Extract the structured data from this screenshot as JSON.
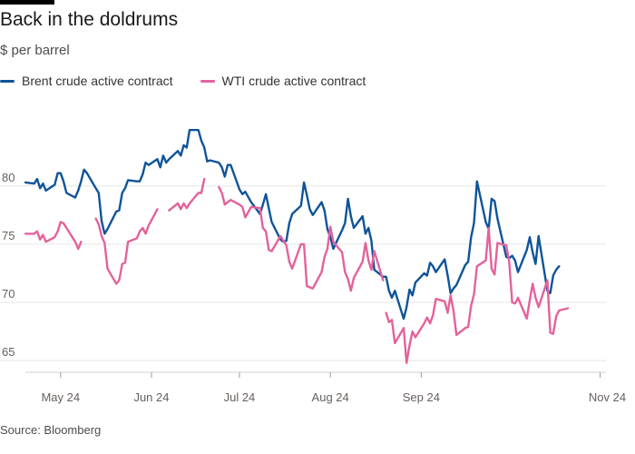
{
  "title": "Back in the doldrums",
  "subtitle": "$ per barrel",
  "source": "Source: Bloomberg",
  "colors": {
    "brent": "#0f5499",
    "wti": "#e3629b",
    "grid": "#e5e5e5",
    "axis": "#66605c"
  },
  "legend": [
    {
      "label": "Brent crude active contract",
      "color": "#0f5499"
    },
    {
      "label": "WTI crude active contract",
      "color": "#e3629b"
    }
  ],
  "chart_data": {
    "type": "line",
    "title": "Back in the doldrums",
    "ylabel": "$ per barrel",
    "ylim": [
      64,
      87
    ],
    "yticks": [
      65,
      70,
      75,
      80
    ],
    "xlim": [
      "2024-04-19",
      "2024-11-03"
    ],
    "xticks": [
      {
        "label": "May 24",
        "date": "2024-05-01"
      },
      {
        "label": "Jun 24",
        "date": "2024-06-01"
      },
      {
        "label": "Jul 24",
        "date": "2024-07-01"
      },
      {
        "label": "Aug 24",
        "date": "2024-08-01"
      },
      {
        "label": "Sep 24",
        "date": "2024-09-01"
      },
      {
        "label": "Nov 24",
        "date": "2024-11-01"
      }
    ],
    "grid": true,
    "legend_position": "top-left",
    "series": [
      {
        "name": "Brent crude active contract",
        "points": [
          [
            "2024-04-19",
            80.3
          ],
          [
            "2024-04-22",
            80.2
          ],
          [
            "2024-04-23",
            80.6
          ],
          [
            "2024-04-24",
            79.8
          ],
          [
            "2024-04-25",
            80.2
          ],
          [
            "2024-04-26",
            79.6
          ],
          [
            "2024-04-29",
            80.1
          ],
          [
            "2024-04-30",
            81.1
          ],
          [
            "2024-05-01",
            81.1
          ],
          [
            "2024-05-02",
            80.4
          ],
          [
            "2024-05-03",
            79.4
          ],
          [
            "2024-05-06",
            79.0
          ],
          [
            "2024-05-07",
            79.6
          ],
          [
            "2024-05-08",
            80.4
          ],
          [
            "2024-05-09",
            81.4
          ],
          [
            "2024-05-10",
            81.1
          ],
          [
            "2024-05-13",
            79.8
          ],
          [
            "2024-05-14",
            79.4
          ],
          [
            "2024-05-15",
            77.0
          ],
          [
            "2024-05-16",
            75.9
          ],
          [
            "2024-05-17",
            76.3
          ],
          [
            "2024-05-20",
            77.8
          ],
          [
            "2024-05-21",
            77.9
          ],
          [
            "2024-05-22",
            79.4
          ],
          [
            "2024-05-23",
            79.8
          ],
          [
            "2024-05-24",
            80.5
          ],
          [
            "2024-05-27",
            80.4
          ],
          [
            "2024-05-28",
            80.4
          ],
          [
            "2024-05-29",
            81.0
          ],
          [
            "2024-05-30",
            82.0
          ],
          [
            "2024-05-31",
            81.8
          ],
          [
            "2024-06-03",
            82.3
          ],
          [
            "2024-06-04",
            81.6
          ],
          [
            "2024-06-05",
            82.6
          ],
          [
            "2024-06-06",
            82.0
          ],
          [
            "2024-06-07",
            82.3
          ],
          [
            "2024-06-10",
            83.0
          ],
          [
            "2024-06-11",
            82.6
          ],
          [
            "2024-06-12",
            83.5
          ],
          [
            "2024-06-13",
            83.3
          ],
          [
            "2024-06-14",
            84.8
          ],
          [
            "2024-06-17",
            84.8
          ],
          [
            "2024-06-18",
            83.9
          ],
          [
            "2024-06-19",
            83.3
          ],
          [
            "2024-06-20",
            82.1
          ],
          [
            "2024-06-21",
            82.2
          ],
          [
            "2024-06-24",
            82.0
          ],
          [
            "2024-06-25",
            81.6
          ],
          [
            "2024-06-26",
            80.8
          ],
          [
            "2024-06-27",
            81.8
          ],
          [
            "2024-06-28",
            81.8
          ],
          [
            "2024-07-01",
            79.7
          ],
          [
            "2024-07-02",
            79.3
          ],
          [
            "2024-07-03",
            79.5
          ],
          [
            "2024-07-05",
            78.6
          ],
          [
            "2024-07-08",
            77.6
          ],
          [
            "2024-07-09",
            78.4
          ],
          [
            "2024-07-10",
            79.3
          ],
          [
            "2024-07-11",
            78.1
          ],
          [
            "2024-07-12",
            76.9
          ],
          [
            "2024-07-15",
            75.4
          ],
          [
            "2024-07-16",
            75.2
          ],
          [
            "2024-07-17",
            75.3
          ],
          [
            "2024-07-18",
            76.8
          ],
          [
            "2024-07-19",
            77.6
          ],
          [
            "2024-07-22",
            78.3
          ],
          [
            "2024-07-23",
            80.3
          ],
          [
            "2024-07-24",
            79.2
          ],
          [
            "2024-07-25",
            78.0
          ],
          [
            "2024-07-26",
            77.5
          ],
          [
            "2024-07-29",
            78.6
          ],
          [
            "2024-07-30",
            77.9
          ],
          [
            "2024-07-31",
            76.3
          ],
          [
            "2024-08-01",
            75.6
          ],
          [
            "2024-08-02",
            74.6
          ],
          [
            "2024-08-05",
            76.2
          ],
          [
            "2024-08-06",
            76.8
          ],
          [
            "2024-08-07",
            78.9
          ],
          [
            "2024-08-08",
            77.4
          ],
          [
            "2024-08-09",
            76.4
          ],
          [
            "2024-08-12",
            77.4
          ],
          [
            "2024-08-13",
            75.9
          ],
          [
            "2024-08-14",
            76.4
          ],
          [
            "2024-08-15",
            75.3
          ],
          [
            "2024-08-16",
            72.8
          ],
          [
            "2024-08-19",
            72.2
          ],
          [
            "2024-08-20",
            72.2
          ],
          [
            "2024-08-21",
            71.0
          ],
          [
            "2024-08-22",
            70.4
          ],
          [
            "2024-08-23",
            71.0
          ],
          [
            "2024-08-26",
            68.6
          ],
          [
            "2024-08-27",
            69.6
          ],
          [
            "2024-08-28",
            71.1
          ],
          [
            "2024-08-29",
            70.6
          ],
          [
            "2024-08-30",
            71.7
          ],
          [
            "2024-09-02",
            72.5
          ],
          [
            "2024-09-03",
            72.3
          ],
          [
            "2024-09-04",
            73.4
          ],
          [
            "2024-09-05",
            73.1
          ],
          [
            "2024-09-06",
            72.6
          ],
          [
            "2024-09-09",
            73.7
          ],
          [
            "2024-09-10",
            72.3
          ],
          [
            "2024-09-11",
            70.8
          ],
          [
            "2024-09-12",
            71.2
          ],
          [
            "2024-09-13",
            71.5
          ],
          [
            "2024-09-16",
            73.2
          ],
          [
            "2024-09-17",
            73.5
          ],
          [
            "2024-09-18",
            75.6
          ],
          [
            "2024-09-19",
            76.8
          ],
          [
            "2024-09-20",
            80.4
          ],
          [
            "2024-09-23",
            76.9
          ],
          [
            "2024-09-24",
            76.3
          ],
          [
            "2024-09-25",
            78.9
          ],
          [
            "2024-09-26",
            78.7
          ],
          [
            "2024-09-27",
            77.2
          ],
          [
            "2024-09-30",
            73.9
          ],
          [
            "2024-10-01",
            73.8
          ],
          [
            "2024-10-02",
            74.0
          ],
          [
            "2024-10-03",
            73.6
          ],
          [
            "2024-10-04",
            72.6
          ],
          [
            "2024-10-07",
            74.5
          ],
          [
            "2024-10-08",
            75.6
          ],
          [
            "2024-10-09",
            74.3
          ],
          [
            "2024-10-10",
            73.3
          ],
          [
            "2024-10-11",
            75.7
          ],
          [
            "2024-10-14",
            71.0
          ],
          [
            "2024-10-15",
            70.8
          ],
          [
            "2024-10-16",
            72.3
          ],
          [
            "2024-10-17",
            72.8
          ],
          [
            "2024-10-18",
            73.1
          ]
        ]
      },
      {
        "name": "WTI crude active contract",
        "points": [
          [
            "2024-04-19",
            75.9
          ],
          [
            "2024-04-22",
            75.9
          ],
          [
            "2024-04-23",
            76.1
          ],
          [
            "2024-04-24",
            75.4
          ],
          [
            "2024-04-25",
            75.8
          ],
          [
            "2024-04-26",
            75.2
          ],
          [
            "2024-04-29",
            75.6
          ],
          [
            "2024-04-30",
            76.1
          ],
          [
            "2024-05-01",
            76.9
          ],
          [
            "2024-05-02",
            76.8
          ],
          [
            "2024-05-03",
            76.4
          ],
          [
            "2024-05-06",
            75.2
          ],
          [
            "2024-05-07",
            74.6
          ],
          [
            "2024-05-08",
            75.2
          ],
          null,
          [
            "2024-05-13",
            77.2
          ],
          [
            "2024-05-14",
            76.7
          ],
          [
            "2024-05-15",
            75.7
          ],
          [
            "2024-05-16",
            75.1
          ],
          [
            "2024-05-17",
            72.9
          ],
          [
            "2024-05-20",
            71.6
          ],
          [
            "2024-05-21",
            71.9
          ],
          [
            "2024-05-22",
            73.3
          ],
          [
            "2024-05-23",
            73.4
          ],
          [
            "2024-05-24",
            75.2
          ],
          [
            "2024-05-27",
            75.5
          ],
          [
            "2024-05-28",
            76.1
          ],
          [
            "2024-05-29",
            76.4
          ],
          [
            "2024-05-30",
            75.9
          ],
          [
            "2024-05-31",
            76.6
          ],
          [
            "2024-06-03",
            78.0
          ],
          null,
          [
            "2024-06-07",
            77.9
          ],
          [
            "2024-06-10",
            78.5
          ],
          [
            "2024-06-11",
            78.0
          ],
          [
            "2024-06-12",
            78.5
          ],
          [
            "2024-06-13",
            78.1
          ],
          [
            "2024-06-14",
            78.5
          ],
          [
            "2024-06-17",
            79.4
          ],
          [
            "2024-06-18",
            79.4
          ],
          [
            "2024-06-19",
            80.6
          ],
          null,
          [
            "2024-06-24",
            79.9
          ],
          [
            "2024-06-25",
            79.4
          ],
          [
            "2024-06-26",
            78.4
          ],
          [
            "2024-06-27",
            78.6
          ],
          [
            "2024-06-28",
            78.8
          ],
          [
            "2024-07-01",
            78.4
          ],
          [
            "2024-07-02",
            78.2
          ],
          [
            "2024-07-03",
            77.3
          ],
          [
            "2024-07-05",
            78.2
          ],
          [
            "2024-07-08",
            78.1
          ],
          [
            "2024-07-09",
            76.4
          ],
          [
            "2024-07-10",
            76.1
          ],
          [
            "2024-07-11",
            74.5
          ],
          [
            "2024-07-12",
            74.4
          ],
          [
            "2024-07-15",
            75.7
          ],
          [
            "2024-07-16",
            75.3
          ],
          [
            "2024-07-17",
            74.9
          ],
          [
            "2024-07-18",
            73.5
          ],
          [
            "2024-07-19",
            72.9
          ],
          [
            "2024-07-22",
            75.0
          ],
          [
            "2024-07-23",
            75.0
          ],
          [
            "2024-07-24",
            71.4
          ],
          [
            "2024-07-25",
            71.3
          ],
          [
            "2024-07-26",
            71.2
          ],
          [
            "2024-07-29",
            72.6
          ],
          [
            "2024-07-30",
            73.9
          ],
          [
            "2024-07-31",
            74.6
          ],
          [
            "2024-08-01",
            76.5
          ],
          [
            "2024-08-02",
            75.2
          ],
          [
            "2024-08-05",
            74.3
          ],
          [
            "2024-08-06",
            72.6
          ],
          [
            "2024-08-07",
            72.0
          ],
          [
            "2024-08-08",
            71.0
          ],
          [
            "2024-08-09",
            72.1
          ],
          [
            "2024-08-12",
            73.5
          ],
          [
            "2024-08-13",
            75.1
          ],
          [
            "2024-08-14",
            73.6
          ],
          [
            "2024-08-15",
            72.8
          ],
          [
            "2024-08-16",
            74.4
          ],
          [
            "2024-08-19",
            71.9
          ],
          null,
          [
            "2024-08-20",
            69.1
          ],
          [
            "2024-08-21",
            68.3
          ],
          [
            "2024-08-22",
            68.5
          ],
          [
            "2024-08-23",
            66.5
          ],
          [
            "2024-08-26",
            67.8
          ],
          [
            "2024-08-27",
            64.8
          ],
          [
            "2024-08-28",
            66.3
          ],
          [
            "2024-08-29",
            67.5
          ],
          [
            "2024-08-30",
            67.0
          ],
          [
            "2024-09-02",
            68.2
          ],
          [
            "2024-09-03",
            68.7
          ],
          [
            "2024-09-04",
            68.2
          ],
          [
            "2024-09-05",
            68.9
          ],
          [
            "2024-09-06",
            70.3
          ],
          [
            "2024-09-09",
            70.1
          ],
          [
            "2024-09-10",
            69.1
          ],
          [
            "2024-09-11",
            70.6
          ],
          [
            "2024-09-12",
            69.3
          ],
          [
            "2024-09-13",
            67.2
          ],
          [
            "2024-09-16",
            67.8
          ],
          [
            "2024-09-17",
            67.9
          ],
          [
            "2024-09-18",
            69.7
          ],
          [
            "2024-09-19",
            70.7
          ],
          [
            "2024-09-20",
            73.1
          ],
          [
            "2024-09-23",
            73.6
          ],
          [
            "2024-09-24",
            76.4
          ],
          [
            "2024-09-25",
            72.9
          ],
          [
            "2024-09-26",
            72.4
          ],
          [
            "2024-09-27",
            75.1
          ],
          [
            "2024-09-30",
            74.9
          ],
          [
            "2024-10-01",
            73.5
          ],
          [
            "2024-10-02",
            70.0
          ],
          [
            "2024-10-03",
            69.9
          ],
          [
            "2024-10-04",
            70.4
          ],
          [
            "2024-10-07",
            68.6
          ],
          [
            "2024-10-08",
            70.2
          ],
          [
            "2024-10-09",
            71.6
          ],
          [
            "2024-10-10",
            70.4
          ],
          [
            "2024-10-11",
            69.6
          ],
          [
            "2024-10-14",
            71.9
          ],
          [
            "2024-10-15",
            67.4
          ],
          [
            "2024-10-16",
            67.3
          ],
          [
            "2024-10-17",
            68.8
          ],
          [
            "2024-10-18",
            69.3
          ],
          [
            "2024-10-21",
            69.5
          ]
        ]
      }
    ]
  }
}
